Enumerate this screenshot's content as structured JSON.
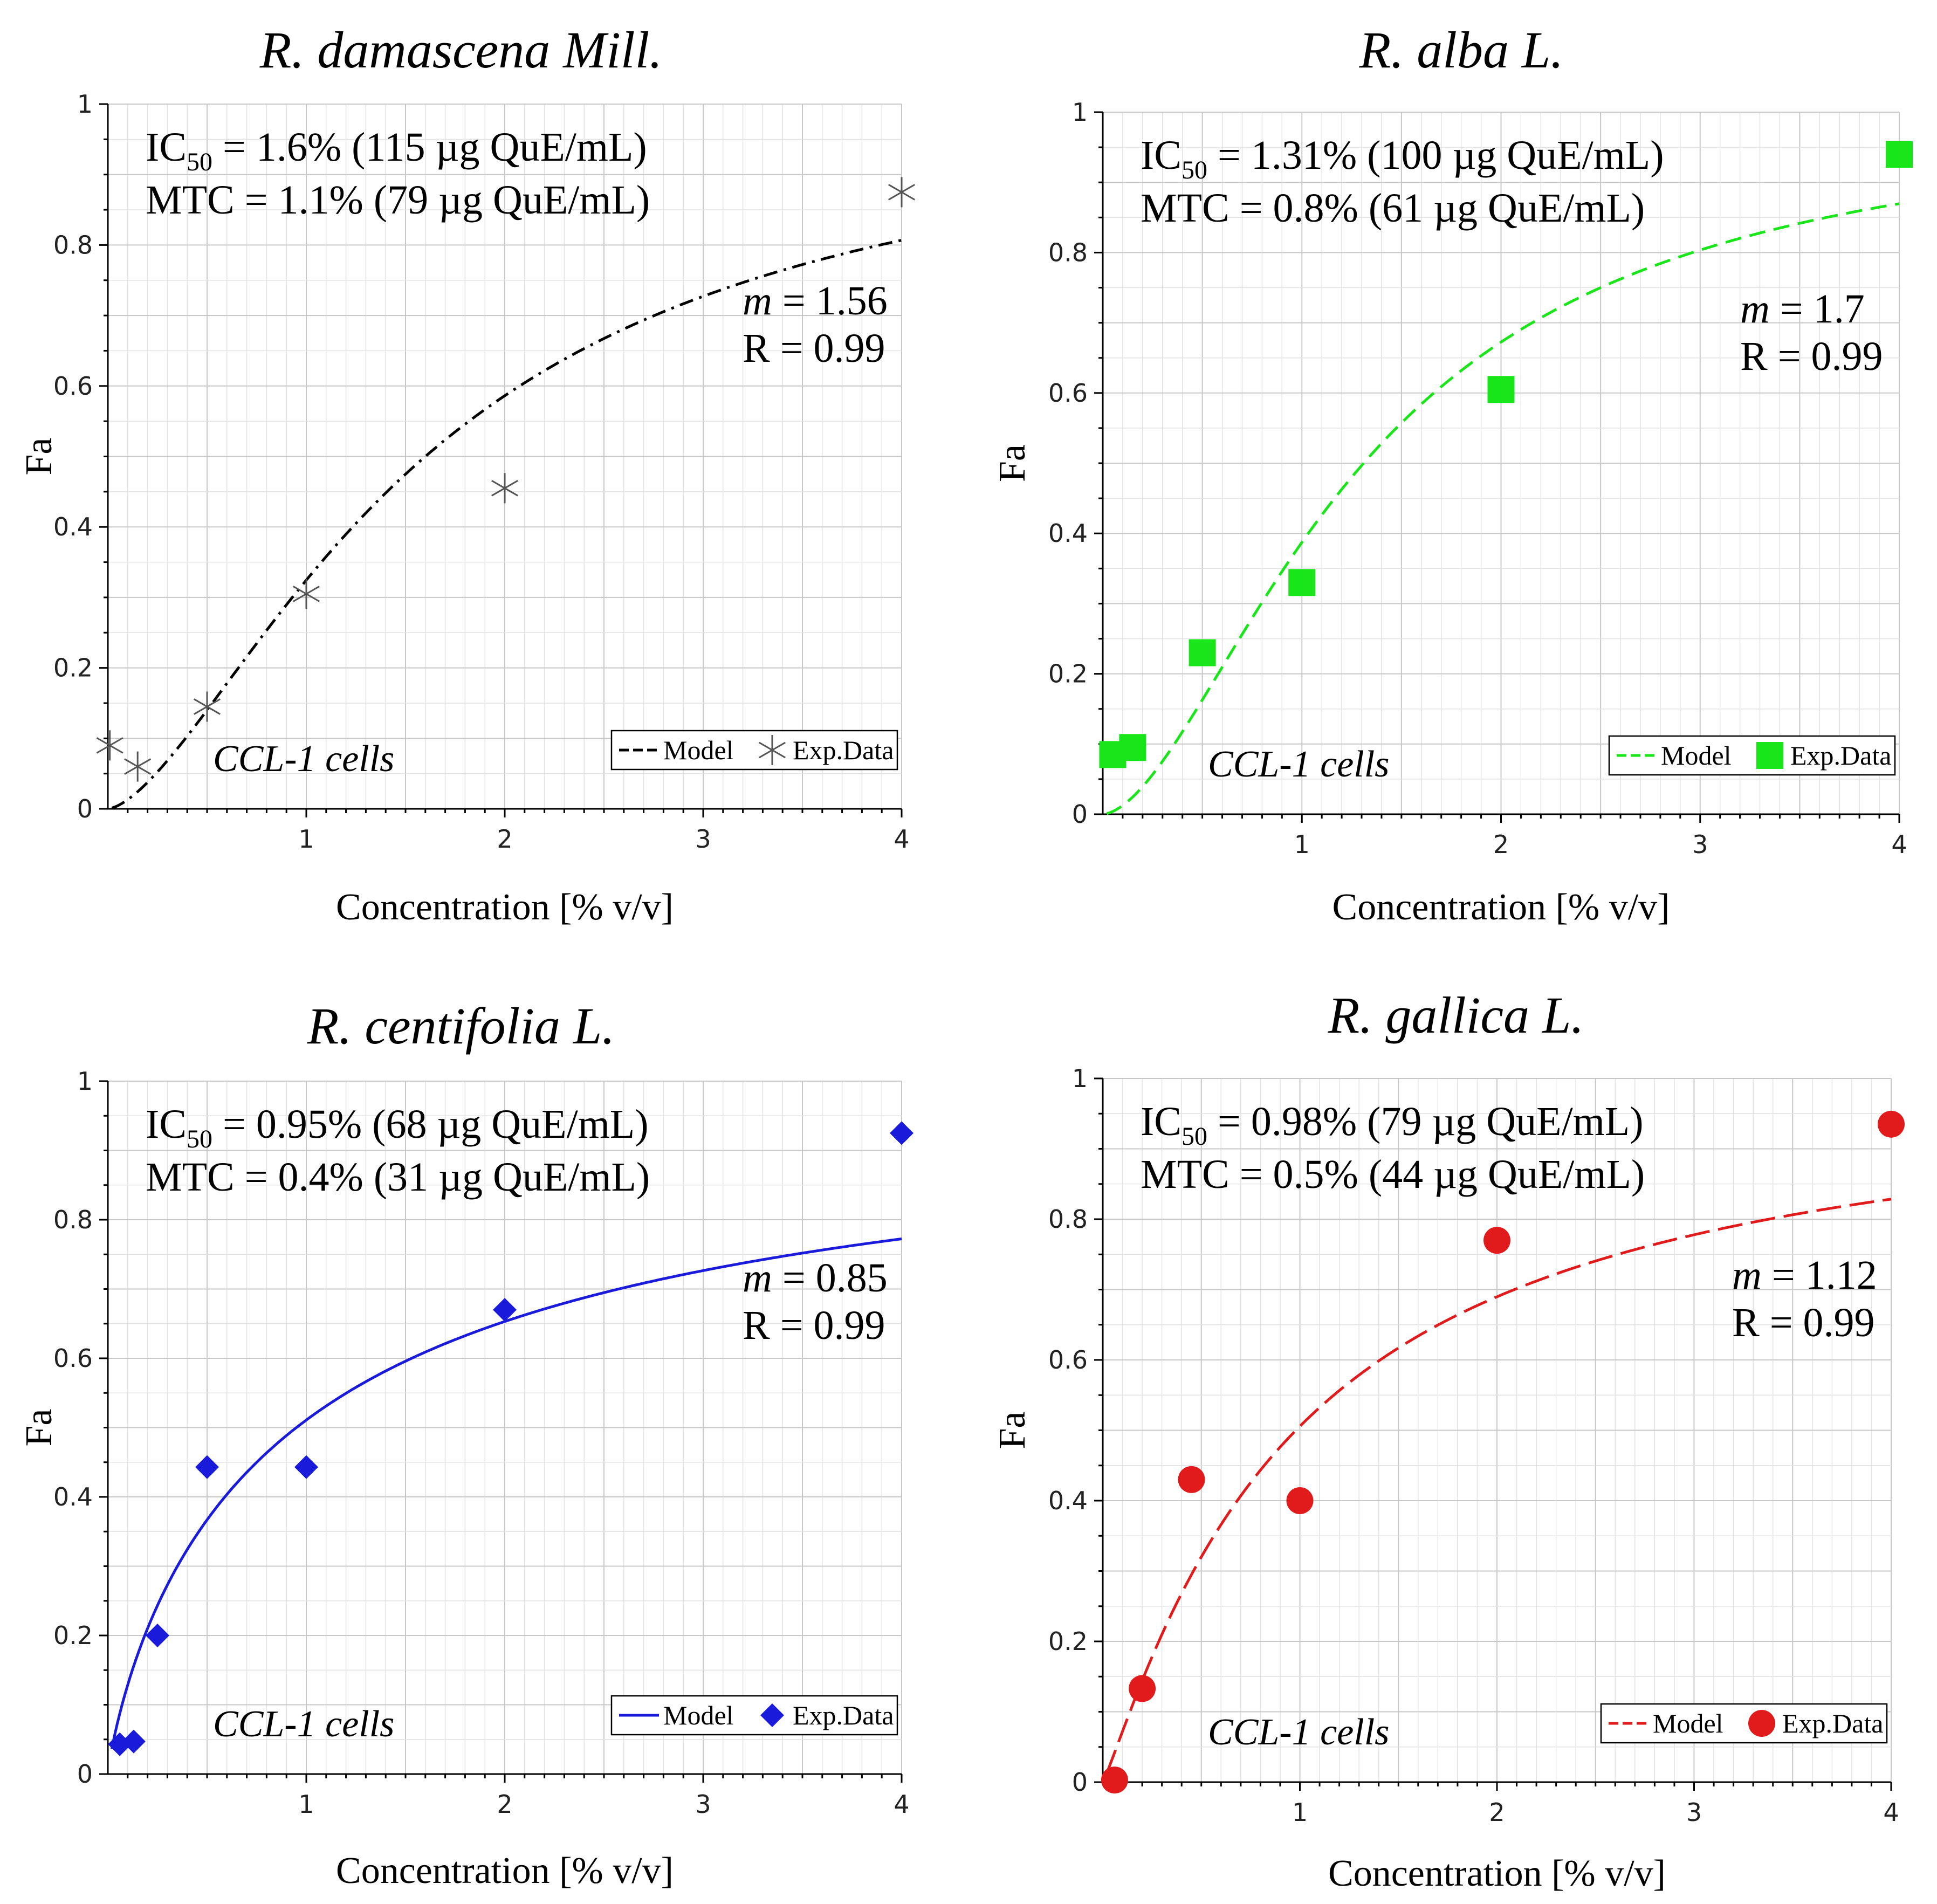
{
  "chart_data": [
    {
      "type": "line",
      "title": "R. damascena Mill.",
      "xlabel": "Concentration [% v/v]",
      "ylabel": "Fa",
      "xlim": [
        0,
        4
      ],
      "ylim": [
        0,
        1
      ],
      "xticks": [
        "1",
        "2",
        "3",
        "4"
      ],
      "yticks": [
        "0",
        "0.2",
        "0.4",
        "0.6",
        "0.8",
        "1"
      ],
      "annotation": {
        "ic50_prefix": "IC",
        "ic50_sub": "50",
        "ic50_rest": " = 1.6% (115 µg QuE/mL)",
        "mtc": "MTC = 1.1% (79 µg QuE/mL)",
        "m_label": "m",
        "m_rest": " = 1.56",
        "r": "R = 0.99"
      },
      "cells_label": "CCL-1 cells",
      "legend": {
        "model": "Model",
        "data": "Exp.Data"
      },
      "color": "#000000",
      "marker": "star",
      "line_style": "dashdot",
      "model": {
        "dm": 1.6,
        "m": 1.56
      },
      "series": [
        {
          "name": "Exp.Data",
          "x": [
            0.01,
            0.15,
            0.5,
            1.0,
            2.0,
            4.0
          ],
          "y": [
            0.09,
            0.06,
            0.145,
            0.305,
            0.455,
            0.875
          ]
        }
      ]
    },
    {
      "type": "line",
      "title": "R. alba L.",
      "xlabel": "Concentration [% v/v]",
      "ylabel": "Fa",
      "xlim": [
        0,
        4
      ],
      "ylim": [
        0,
        1
      ],
      "xticks": [
        "1",
        "2",
        "3",
        "4"
      ],
      "yticks": [
        "0",
        "0.2",
        "0.4",
        "0.6",
        "0.8",
        "1"
      ],
      "annotation": {
        "ic50_prefix": "IC",
        "ic50_sub": "50",
        "ic50_rest": " = 1.31% (100 µg QuE/mL)",
        "mtc": "MTC = 0.8% (61 µg QuE/mL)",
        "m_label": "m",
        "m_rest": " = 1.7",
        "r": "R = 0.99"
      },
      "cells_label": "CCL-1 cells",
      "legend": {
        "model": "Model",
        "data": "Exp.Data"
      },
      "color": "#19e619",
      "marker": "square",
      "line_style": "dashed",
      "model": {
        "dm": 1.31,
        "m": 1.7
      },
      "series": [
        {
          "name": "Exp.Data",
          "x": [
            0.05,
            0.15,
            0.5,
            1.0,
            2.0,
            4.0
          ],
          "y": [
            0.085,
            0.095,
            0.23,
            0.33,
            0.605,
            0.94
          ]
        }
      ]
    },
    {
      "type": "line",
      "title": "R. centifolia L.",
      "xlabel": "Concentration [% v/v]",
      "ylabel": "Fa",
      "xlim": [
        0,
        4
      ],
      "ylim": [
        0,
        1
      ],
      "xticks": [
        "1",
        "2",
        "3",
        "4"
      ],
      "yticks": [
        "0",
        "0.2",
        "0.4",
        "0.6",
        "0.8",
        "1"
      ],
      "annotation": {
        "ic50_prefix": "IC",
        "ic50_sub": "50",
        "ic50_rest": " = 0.95% (68 µg QuE/mL)",
        "mtc": "MTC = 0.4% (31 µg QuE/mL)",
        "m_label": "m",
        "m_rest": " = 0.85",
        "r": "R = 0.99"
      },
      "cells_label": "CCL-1 cells",
      "legend": {
        "model": "Model",
        "data": "Exp.Data"
      },
      "color": "#1a1adb",
      "marker": "diamond",
      "line_style": "solid",
      "model": {
        "dm": 0.95,
        "m": 0.85
      },
      "series": [
        {
          "name": "Exp.Data",
          "x": [
            0.06,
            0.13,
            0.25,
            0.5,
            1.0,
            2.0,
            4.0
          ],
          "y": [
            0.043,
            0.047,
            0.2,
            0.443,
            0.443,
            0.67,
            0.925
          ]
        }
      ]
    },
    {
      "type": "line",
      "title": "R. gallica L.",
      "xlabel": "Concentration [% v/v]",
      "ylabel": "Fa",
      "xlim": [
        0,
        4
      ],
      "ylim": [
        0,
        1
      ],
      "xticks": [
        "1",
        "2",
        "3",
        "4"
      ],
      "yticks": [
        "0",
        "0.2",
        "0.4",
        "0.6",
        "0.8",
        "1"
      ],
      "annotation": {
        "ic50_prefix": "IC",
        "ic50_sub": "50",
        "ic50_rest": " = 0.98% (79 µg QuE/mL)",
        "mtc": "MTC = 0.5% (44 µg QuE/mL)",
        "m_label": "m",
        "m_rest": " = 1.12",
        "r": "R = 0.99"
      },
      "cells_label": "CCL-1 cells",
      "legend": {
        "model": "Model",
        "data": "Exp.Data"
      },
      "color": "#e11b1b",
      "marker": "circle",
      "line_style": "longdash",
      "model": {
        "dm": 0.98,
        "m": 1.12
      },
      "series": [
        {
          "name": "Exp.Data",
          "x": [
            0.06,
            0.2,
            0.45,
            1.0,
            2.0,
            4.0
          ],
          "y": [
            0.003,
            0.133,
            0.43,
            0.4,
            0.77,
            0.935
          ]
        }
      ]
    }
  ]
}
